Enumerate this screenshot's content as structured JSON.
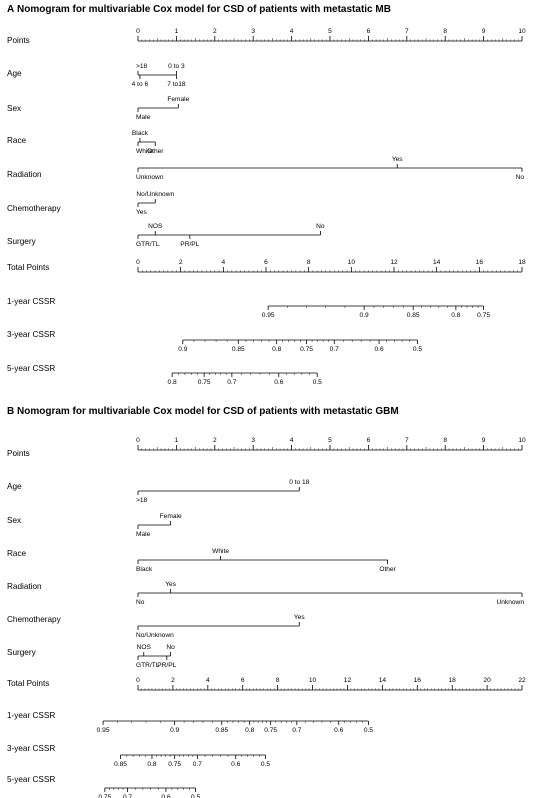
{
  "chart_data": [
    {
      "type": "nomogram",
      "panel_label": "A",
      "title": "Nomogram for multivariable Cox model for CSD of patients with metastatic MB",
      "rows": [
        {
          "label": "Points",
          "kind": "scale",
          "ticks": [
            0,
            1,
            2,
            3,
            4,
            5,
            6,
            7,
            8,
            9,
            10
          ],
          "range": [
            0,
            10
          ],
          "minor_step": 0.1
        },
        {
          "label": "Age",
          "kind": "variable",
          "levels": [
            {
              "name": ">18",
              "points": 0.0,
              "side": "up"
            },
            {
              "name": "0 to 3",
              "points": 1.0,
              "side": "up"
            },
            {
              "name": "4 to 6",
              "points": 0.05,
              "side": "down"
            },
            {
              "name": "7 to18",
              "points": 1.0,
              "side": "down"
            }
          ]
        },
        {
          "label": "Sex",
          "kind": "variable",
          "levels": [
            {
              "name": "Male",
              "points": 0.0,
              "side": "down"
            },
            {
              "name": "Female",
              "points": 1.05,
              "side": "up"
            }
          ]
        },
        {
          "label": "Race",
          "kind": "variable",
          "levels": [
            {
              "name": "White",
              "points": 0.0,
              "side": "down"
            },
            {
              "name": "Black",
              "points": 0.05,
              "side": "up"
            },
            {
              "name": "Other",
              "points": 0.45,
              "side": "down"
            }
          ]
        },
        {
          "label": "Radiation",
          "kind": "variable",
          "levels": [
            {
              "name": "Unknown",
              "points": 0.0,
              "side": "down"
            },
            {
              "name": "Yes",
              "points": 6.75,
              "side": "up"
            },
            {
              "name": "No",
              "points": 10.0,
              "side": "down"
            }
          ]
        },
        {
          "label": "Chemotherapy",
          "kind": "variable",
          "levels": [
            {
              "name": "Yes",
              "points": 0.0,
              "side": "down"
            },
            {
              "name": "No/Unknown",
              "points": 0.45,
              "side": "up"
            }
          ]
        },
        {
          "label": "Surgery",
          "kind": "variable",
          "levels": [
            {
              "name": "GTR/TL",
              "points": 0.0,
              "side": "down"
            },
            {
              "name": "NOS",
              "points": 0.45,
              "side": "up"
            },
            {
              "name": "PR/PL",
              "points": 1.35,
              "side": "down"
            },
            {
              "name": "No",
              "points": 4.75,
              "side": "up"
            }
          ]
        },
        {
          "label": "Total Points",
          "kind": "scale",
          "ticks": [
            0,
            2,
            4,
            6,
            8,
            10,
            12,
            14,
            16,
            18
          ],
          "range": [
            0,
            18
          ],
          "minor_step": 0.2
        },
        {
          "label": "1-year CSSR",
          "kind": "outcome",
          "marks": [
            {
              "value": "0.95",
              "total": 6.1
            },
            {
              "value": "0.9",
              "total": 10.6
            },
            {
              "value": "0.85",
              "total": 12.9
            },
            {
              "value": "0.8",
              "total": 14.9
            },
            {
              "value": "0.75",
              "total": 16.2
            }
          ]
        },
        {
          "label": "3-year CSSR",
          "kind": "outcome",
          "marks": [
            {
              "value": "0.9",
              "total": 2.1
            },
            {
              "value": "0.85",
              "total": 4.7
            },
            {
              "value": "0.8",
              "total": 6.5
            },
            {
              "value": "0.75",
              "total": 7.9
            },
            {
              "value": "0.7",
              "total": 9.2
            },
            {
              "value": "0.6",
              "total": 11.3
            },
            {
              "value": "0.5",
              "total": 13.1
            }
          ]
        },
        {
          "label": "5-year CSSR",
          "kind": "outcome",
          "marks": [
            {
              "value": "0.8",
              "total": 1.6
            },
            {
              "value": "0.75",
              "total": 3.1
            },
            {
              "value": "0.7",
              "total": 4.4
            },
            {
              "value": "0.6",
              "total": 6.6
            },
            {
              "value": "0.5",
              "total": 8.4
            }
          ]
        }
      ]
    },
    {
      "type": "nomogram",
      "panel_label": "B",
      "title": "Nomogram for multivariable Cox model for CSD of patients with metastatic GBM",
      "rows": [
        {
          "label": "Points",
          "kind": "scale",
          "ticks": [
            0,
            1,
            2,
            3,
            4,
            5,
            6,
            7,
            8,
            9,
            10
          ],
          "range": [
            0,
            10
          ],
          "minor_step": 0.1
        },
        {
          "label": "Age",
          "kind": "variable",
          "levels": [
            {
              "name": ">18",
              "points": 0.0,
              "side": "down"
            },
            {
              "name": "0 to 18",
              "points": 4.2,
              "side": "up"
            }
          ]
        },
        {
          "label": "Sex",
          "kind": "variable",
          "levels": [
            {
              "name": "Male",
              "points": 0.0,
              "side": "down"
            },
            {
              "name": "Female",
              "points": 0.85,
              "side": "up"
            }
          ]
        },
        {
          "label": "Race",
          "kind": "variable",
          "levels": [
            {
              "name": "Black",
              "points": 0.0,
              "side": "down"
            },
            {
              "name": "White",
              "points": 2.15,
              "side": "up"
            },
            {
              "name": "Other",
              "points": 6.5,
              "side": "down"
            }
          ]
        },
        {
          "label": "Radiation",
          "kind": "variable",
          "levels": [
            {
              "name": "No",
              "points": 0.0,
              "side": "down"
            },
            {
              "name": "Yes",
              "points": 0.85,
              "side": "up"
            },
            {
              "name": "Unknown",
              "points": 10.0,
              "side": "down"
            }
          ]
        },
        {
          "label": "Chemotherapy",
          "kind": "variable",
          "levels": [
            {
              "name": "No/Unknown",
              "points": 0.0,
              "side": "down"
            },
            {
              "name": "Yes",
              "points": 4.2,
              "side": "up"
            }
          ]
        },
        {
          "label": "Surgery",
          "kind": "variable",
          "levels": [
            {
              "name": "GTR/TL",
              "points": 0.0,
              "side": "down"
            },
            {
              "name": "NOS",
              "points": 0.15,
              "side": "up"
            },
            {
              "name": "PR/PL",
              "points": 0.75,
              "side": "down"
            },
            {
              "name": "No",
              "points": 0.85,
              "side": "up"
            }
          ]
        },
        {
          "label": "Total Points",
          "kind": "scale",
          "ticks": [
            0,
            2,
            4,
            6,
            8,
            10,
            12,
            14,
            16,
            18,
            20,
            22
          ],
          "range": [
            0,
            22
          ],
          "minor_step": 0.2
        },
        {
          "label": "1-year CSSR",
          "kind": "outcome",
          "marks": [
            {
              "value": "0.95",
              "total": -2.0
            },
            {
              "value": "0.9",
              "total": 2.1
            },
            {
              "value": "0.85",
              "total": 4.8
            },
            {
              "value": "0.8",
              "total": 6.4
            },
            {
              "value": "0.75",
              "total": 7.6
            },
            {
              "value": "0.7",
              "total": 9.1
            },
            {
              "value": "0.6",
              "total": 11.5
            },
            {
              "value": "0.5",
              "total": 13.2
            }
          ]
        },
        {
          "label": "3-year CSSR",
          "kind": "outcome",
          "marks": [
            {
              "value": "0.85",
              "total": -1.0
            },
            {
              "value": "0.8",
              "total": 0.8
            },
            {
              "value": "0.75",
              "total": 2.1
            },
            {
              "value": "0.7",
              "total": 3.4
            },
            {
              "value": "0.6",
              "total": 5.6
            },
            {
              "value": "0.5",
              "total": 7.3
            }
          ]
        },
        {
          "label": "5-year CSSR",
          "kind": "outcome",
          "marks": [
            {
              "value": "0.75",
              "total": -1.9
            },
            {
              "value": "0.7",
              "total": -0.6
            },
            {
              "value": "0.6",
              "total": 1.6
            },
            {
              "value": "0.5",
              "total": 3.3
            }
          ]
        }
      ]
    }
  ]
}
